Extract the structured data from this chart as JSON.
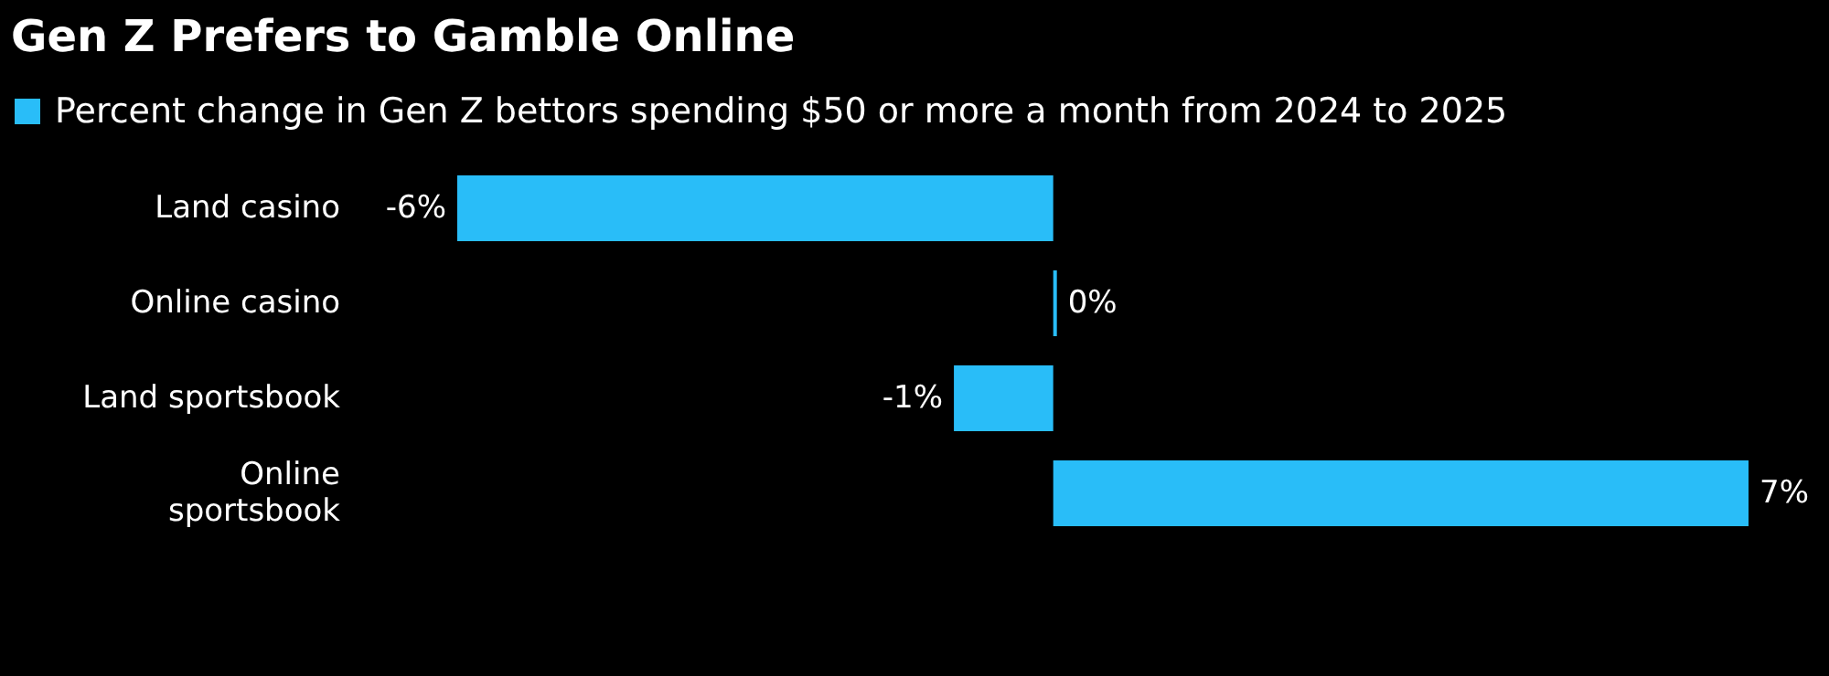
{
  "chart_data": {
    "type": "bar",
    "orientation": "horizontal",
    "title": "Gen Z Prefers to Gamble Online",
    "categories": [
      "Land casino",
      "Online casino",
      "Land sportsbook",
      "Online sportsbook"
    ],
    "series": [
      {
        "name": "Percent change in Gen Z bettors spending $50 or more a month from 2024 to 2025",
        "color": "#29bdf8",
        "values": [
          -6,
          0,
          -1,
          7
        ],
        "value_labels": [
          "-6%",
          "0%",
          "-1%",
          "7%"
        ]
      }
    ],
    "xlim": [
      -6,
      7
    ],
    "legend": "top left"
  }
}
